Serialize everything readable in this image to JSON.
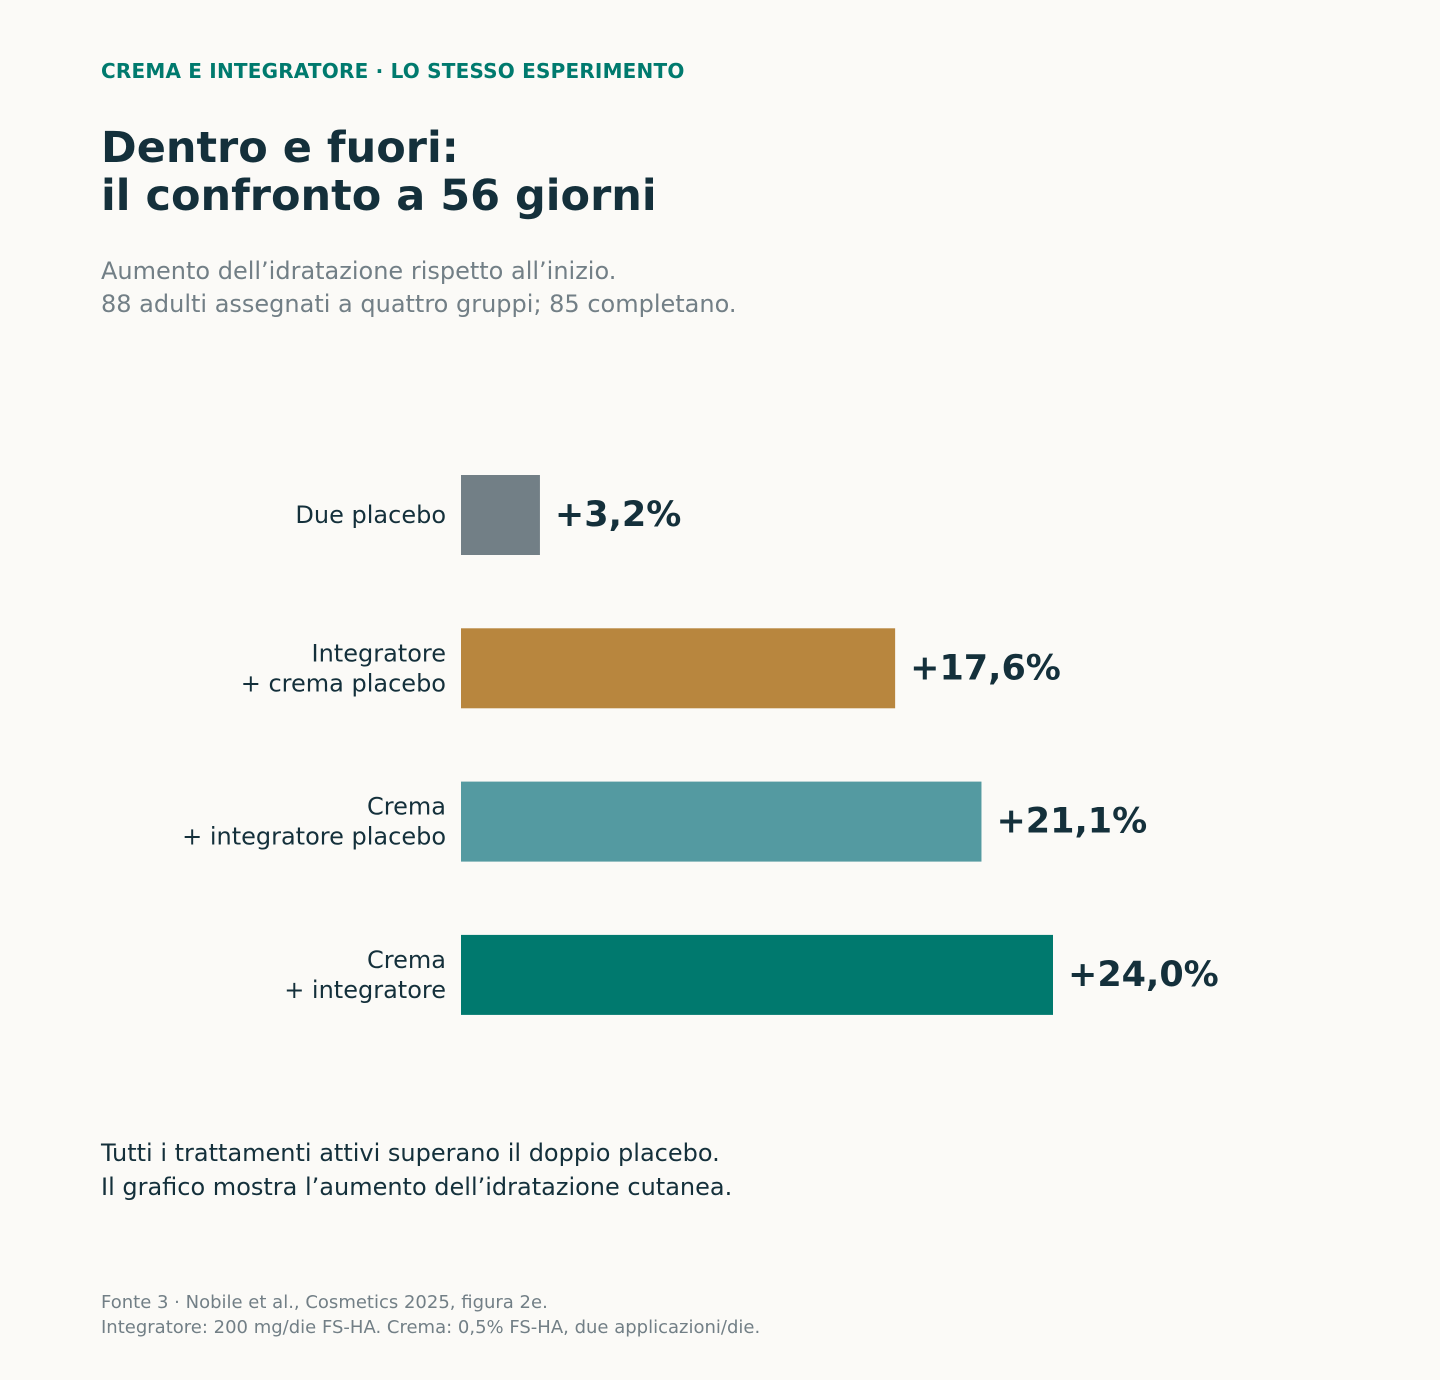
{
  "header": {
    "eyebrow": "CREMA E INTEGRATORE · LO STESSO ESPERIMENTO",
    "title_lines": [
      "Dentro e fuori:",
      "il confronto a 56 giorni"
    ],
    "subtitle_lines": [
      "Aumento dell’idratazione rispetto all’inizio.",
      "88 adulti assegnati a quattro gruppi; 85 completano."
    ]
  },
  "chart_data": {
    "type": "bar",
    "orientation": "horizontal",
    "categories": [
      [
        "Due placebo"
      ],
      [
        "Integratore",
        "+ crema placebo"
      ],
      [
        "Crema",
        "+ integratore placebo"
      ],
      [
        "Crema",
        "+ integratore"
      ]
    ],
    "values": [
      3.2,
      17.6,
      21.1,
      24.0
    ],
    "value_labels": [
      "+3,2%",
      "+17,6%",
      "+21,1%",
      "+24,0%"
    ],
    "colors": [
      "#727f86",
      "#b8863e",
      "#549aa1",
      "#00796e"
    ],
    "unit": "%",
    "xlim": [
      0,
      24.0
    ],
    "grid": false,
    "legend": "none"
  },
  "footer": {
    "note_lines": [
      "Tutti i trattamenti attivi superano il doppio placebo.",
      "Il grafico mostra l’aumento dell’idratazione cutanea."
    ],
    "source_lines": [
      "Fonte 3 · Nobile et al., Cosmetics 2025, figura 2e.",
      "Integratore: 200 mg/die FS-HA. Crema: 0,5% FS-HA, due applicazioni/die."
    ]
  }
}
